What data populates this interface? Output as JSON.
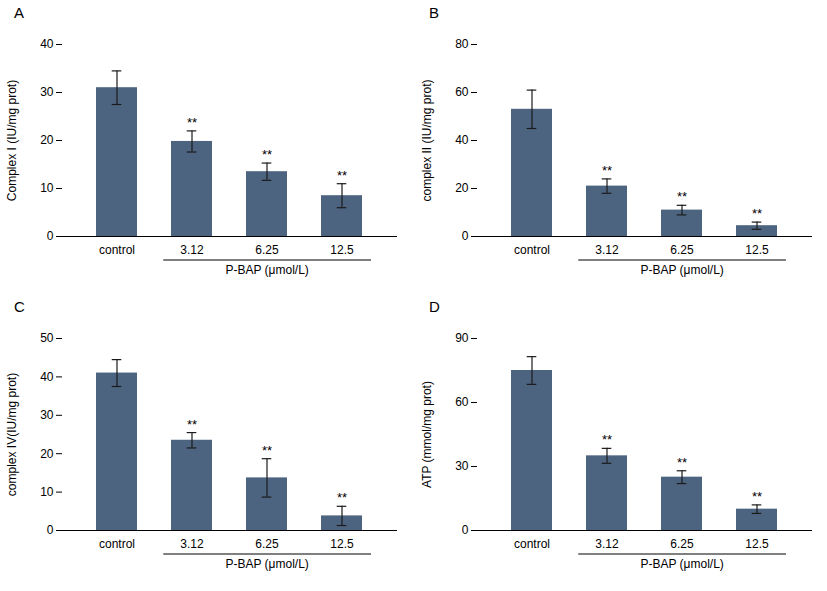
{
  "chart_data": [
    {
      "type": "bar",
      "title": "A",
      "xlabel": "P-BAP (μmol/L)",
      "ylabel": "Complex I (IU/mg prot)",
      "categories": [
        "control",
        "3.12",
        "6.25",
        "12.5"
      ],
      "values": [
        31.0,
        19.8,
        13.5,
        8.5
      ],
      "errors": [
        3.5,
        2.2,
        1.8,
        2.5
      ],
      "ylim": [
        0,
        40
      ],
      "yticks": [
        0,
        10,
        20,
        30,
        40
      ],
      "color": "#4d6480",
      "grid": false,
      "annotations": [
        {
          "category": "3.12",
          "text": "**"
        },
        {
          "category": "6.25",
          "text": "**"
        },
        {
          "category": "12.5",
          "text": "**"
        }
      ]
    },
    {
      "type": "bar",
      "title": "B",
      "xlabel": "P-BAP (μmol/L)",
      "ylabel": "complex II (IU/mg prot)",
      "categories": [
        "control",
        "3.12",
        "6.25",
        "12.5"
      ],
      "values": [
        53.0,
        21.0,
        11.0,
        4.5
      ],
      "errors": [
        8.0,
        3.0,
        2.0,
        1.5
      ],
      "ylim": [
        0,
        80
      ],
      "yticks": [
        0,
        20,
        40,
        60,
        80
      ],
      "color": "#4d6480",
      "grid": false,
      "annotations": [
        {
          "category": "3.12",
          "text": "**"
        },
        {
          "category": "6.25",
          "text": "**"
        },
        {
          "category": "12.5",
          "text": "**"
        }
      ]
    },
    {
      "type": "bar",
      "title": "C",
      "xlabel": "P-BAP (μmol/L)",
      "ylabel": "complex IV(IU/mg prot)",
      "categories": [
        "control",
        "3.12",
        "6.25",
        "12.5"
      ],
      "values": [
        41.0,
        23.5,
        13.7,
        3.8
      ],
      "errors": [
        3.5,
        2.0,
        5.0,
        2.5
      ],
      "ylim": [
        0,
        50
      ],
      "yticks": [
        0,
        10,
        20,
        30,
        40,
        50
      ],
      "color": "#4d6480",
      "grid": false,
      "annotations": [
        {
          "category": "3.12",
          "text": "**"
        },
        {
          "category": "6.25",
          "text": "**"
        },
        {
          "category": "12.5",
          "text": "**"
        }
      ]
    },
    {
      "type": "bar",
      "title": "D",
      "xlabel": "P-BAP (μmol/L)",
      "ylabel": "ATP (mmol/mg prot)",
      "categories": [
        "control",
        "3.12",
        "6.25",
        "12.5"
      ],
      "values": [
        75.0,
        35.0,
        25.0,
        10.0
      ],
      "errors": [
        6.5,
        3.5,
        3.0,
        2.0
      ],
      "ylim": [
        0,
        90
      ],
      "yticks": [
        0,
        30,
        60,
        90
      ],
      "color": "#4d6480",
      "grid": false,
      "annotations": [
        {
          "category": "3.12",
          "text": "**"
        },
        {
          "category": "6.25",
          "text": "**"
        },
        {
          "category": "12.5",
          "text": "**"
        }
      ]
    }
  ]
}
